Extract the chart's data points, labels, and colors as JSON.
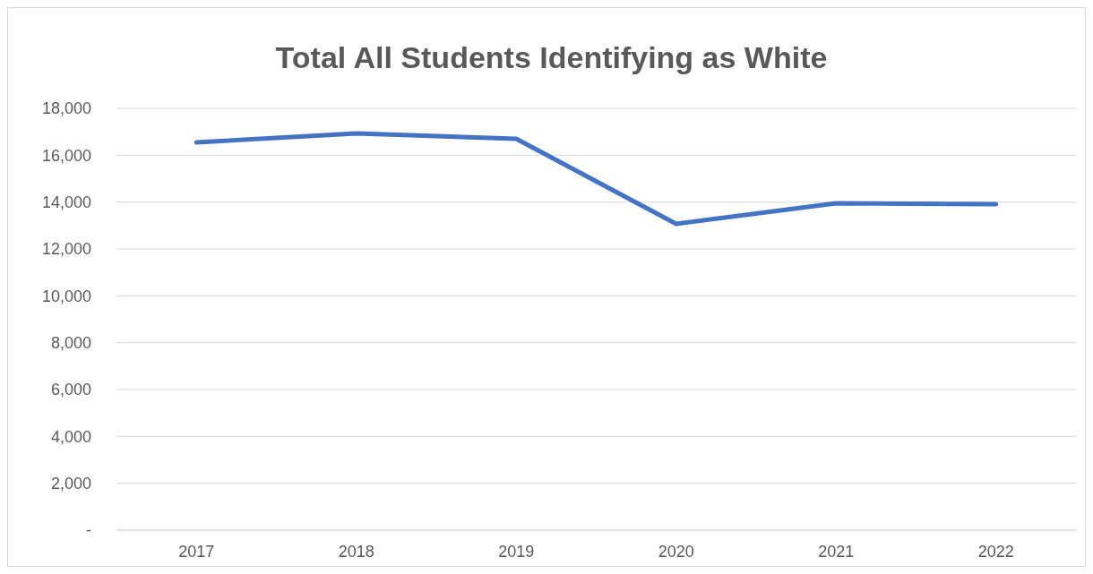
{
  "chart_data": {
    "type": "line",
    "title": "Total All Students Identifying as White",
    "categories": [
      "2017",
      "2018",
      "2019",
      "2020",
      "2021",
      "2022"
    ],
    "series": [
      {
        "color": "#4472c4",
        "values": [
          16550,
          16930,
          16700,
          13070,
          13950,
          13910
        ]
      }
    ],
    "ylim": [
      0,
      18000
    ],
    "yticks": [
      {
        "value": 0,
        "label": "-"
      },
      {
        "value": 2000,
        "label": "2,000"
      },
      {
        "value": 4000,
        "label": "4,000"
      },
      {
        "value": 6000,
        "label": "6,000"
      },
      {
        "value": 8000,
        "label": "8,000"
      },
      {
        "value": 10000,
        "label": "10,000"
      },
      {
        "value": 12000,
        "label": "12,000"
      },
      {
        "value": 14000,
        "label": "14,000"
      },
      {
        "value": 16000,
        "label": "16,000"
      },
      {
        "value": 18000,
        "label": "18,000"
      }
    ],
    "grid": "y",
    "marker": "none",
    "line_style": "solid"
  }
}
